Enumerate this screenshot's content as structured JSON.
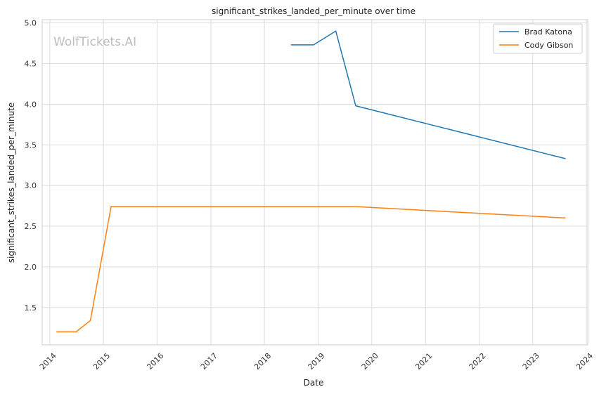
{
  "chart_data": {
    "type": "line",
    "title": "significant_strikes_landed_per_minute over time",
    "xlabel": "Date",
    "ylabel": "significant_strikes_landed_per_minute",
    "watermark": "WolfTickets.AI",
    "x_ticks": [
      "2014",
      "2015",
      "2016",
      "2017",
      "2018",
      "2019",
      "2020",
      "2021",
      "2022",
      "2023",
      "2024"
    ],
    "y_ticks": [
      "1.5",
      "2.0",
      "2.5",
      "3.0",
      "3.5",
      "4.0",
      "4.5",
      "5.0"
    ],
    "xlim": [
      "2013-11-10",
      "2024-01-10"
    ],
    "ylim": [
      1.04,
      5.04
    ],
    "grid": true,
    "legend_position": "top-right",
    "series": [
      {
        "name": "Brad Katona",
        "color": "#1f77b4",
        "points": [
          {
            "x": "2018-06-30",
            "y": 4.73
          },
          {
            "x": "2018-12-01",
            "y": 4.73
          },
          {
            "x": "2019-05-01",
            "y": 4.9
          },
          {
            "x": "2019-09-14",
            "y": 3.98
          },
          {
            "x": "2023-08-12",
            "y": 3.33
          }
        ]
      },
      {
        "name": "Cody Gibson",
        "color": "#ff7f0e",
        "points": [
          {
            "x": "2014-02-15",
            "y": 1.2
          },
          {
            "x": "2014-06-28",
            "y": 1.2
          },
          {
            "x": "2014-10-04",
            "y": 1.34
          },
          {
            "x": "2015-02-22",
            "y": 2.74
          },
          {
            "x": "2019-09-14",
            "y": 2.74
          },
          {
            "x": "2023-08-12",
            "y": 2.6
          }
        ]
      }
    ]
  }
}
